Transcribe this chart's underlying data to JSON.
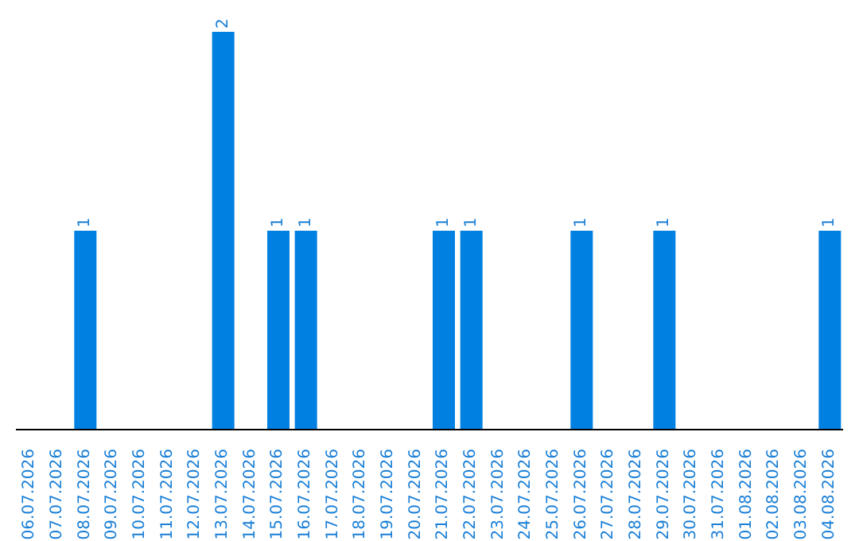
{
  "chart_data": {
    "type": "bar",
    "categories": [
      "06.07.2026",
      "07.07.2026",
      "08.07.2026",
      "09.07.2026",
      "10.07.2026",
      "11.07.2026",
      "12.07.2026",
      "13.07.2026",
      "14.07.2026",
      "15.07.2026",
      "16.07.2026",
      "17.07.2026",
      "18.07.2026",
      "19.07.2026",
      "20.07.2026",
      "21.07.2026",
      "22.07.2026",
      "23.07.2026",
      "24.07.2026",
      "25.07.2026",
      "26.07.2026",
      "27.07.2026",
      "28.07.2026",
      "29.07.2026",
      "30.07.2026",
      "31.07.2026",
      "01.08.2026",
      "02.08.2026",
      "03.08.2026",
      "04.08.2026"
    ],
    "values": [
      0,
      0,
      1,
      0,
      0,
      0,
      0,
      2,
      0,
      1,
      1,
      0,
      0,
      0,
      0,
      1,
      1,
      0,
      0,
      0,
      1,
      0,
      0,
      1,
      0,
      0,
      0,
      0,
      0,
      1
    ],
    "value_labels": [
      null,
      null,
      "1",
      null,
      null,
      null,
      null,
      "2",
      null,
      "1",
      "1",
      null,
      null,
      null,
      null,
      "1",
      "1",
      null,
      null,
      null,
      "1",
      null,
      null,
      "1",
      null,
      null,
      null,
      null,
      null,
      "1"
    ],
    "color": "#0080e0"
  }
}
